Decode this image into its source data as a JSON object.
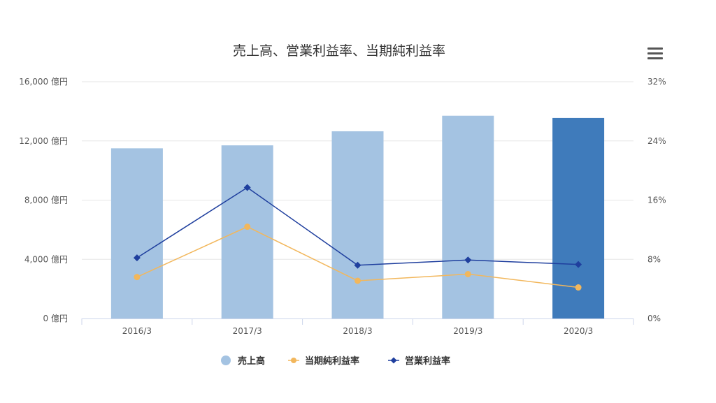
{
  "chart_data": {
    "type": "bar",
    "title": "売上高、営業利益率、当期純利益率",
    "categories": [
      "2016/3",
      "2017/3",
      "2018/3",
      "2019/3",
      "2020/3"
    ],
    "y_left": {
      "ylim": [
        0,
        16000
      ],
      "ticks": [
        0,
        4000,
        8000,
        12000,
        16000
      ],
      "tick_labels": [
        "0 億円",
        "4,000 億円",
        "8,000 億円",
        "12,000 億円",
        "16,000 億円"
      ]
    },
    "y_right": {
      "ylim": [
        0,
        32
      ],
      "ticks": [
        0,
        8,
        16,
        24,
        32
      ],
      "tick_labels": [
        "0%",
        "8%",
        "16%",
        "24%",
        "32%"
      ]
    },
    "series": [
      {
        "name": "売上高",
        "type": "bar",
        "axis": "left",
        "values": [
          11500,
          11700,
          12650,
          13700,
          13550
        ],
        "colors": [
          "#a4c3e2",
          "#a4c3e2",
          "#a4c3e2",
          "#a4c3e2",
          "#3f7bbb"
        ]
      },
      {
        "name": "当期純利益率",
        "type": "line",
        "axis": "right",
        "values": [
          5.6,
          12.4,
          5.1,
          6.0,
          4.2
        ],
        "color": "#f2b75c",
        "marker": "circle"
      },
      {
        "name": "営業利益率",
        "type": "line",
        "axis": "right",
        "values": [
          8.2,
          17.7,
          7.2,
          7.9,
          7.3
        ],
        "color": "#1f3f9e",
        "marker": "diamond"
      }
    ],
    "legend": {
      "position": "bottom",
      "order": [
        "売上高",
        "当期純利益率",
        "営業利益率"
      ]
    },
    "grid": true
  },
  "menu_icon": "hamburger-menu-icon"
}
